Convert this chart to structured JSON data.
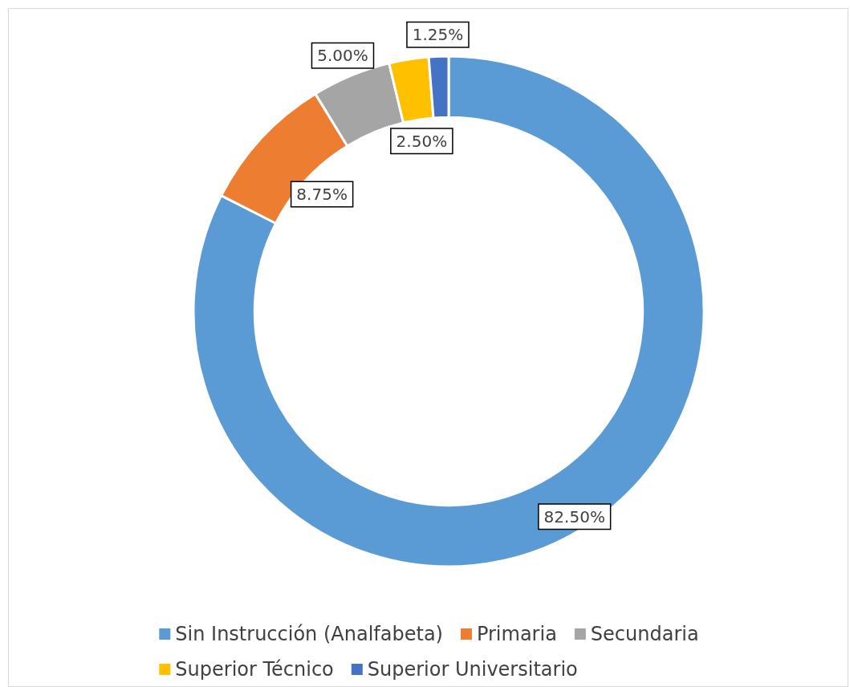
{
  "chart_data": {
    "type": "donut",
    "categories": [
      "Sin Instrucción (Analfabeta)",
      "Primaria",
      "Secundaria",
      "Superior Técnico",
      "Superior Universitario"
    ],
    "values": [
      82.5,
      8.75,
      5,
      2.5,
      1.25
    ],
    "value_labels": [
      "82.50%",
      "8.75%",
      "5.00%",
      "2.50%",
      "1.25%"
    ],
    "colors": [
      "#5b9bd5",
      "#ed7d31",
      "#a5a5a5",
      "#ffc000",
      "#4472c4"
    ],
    "legend": "bottom"
  }
}
